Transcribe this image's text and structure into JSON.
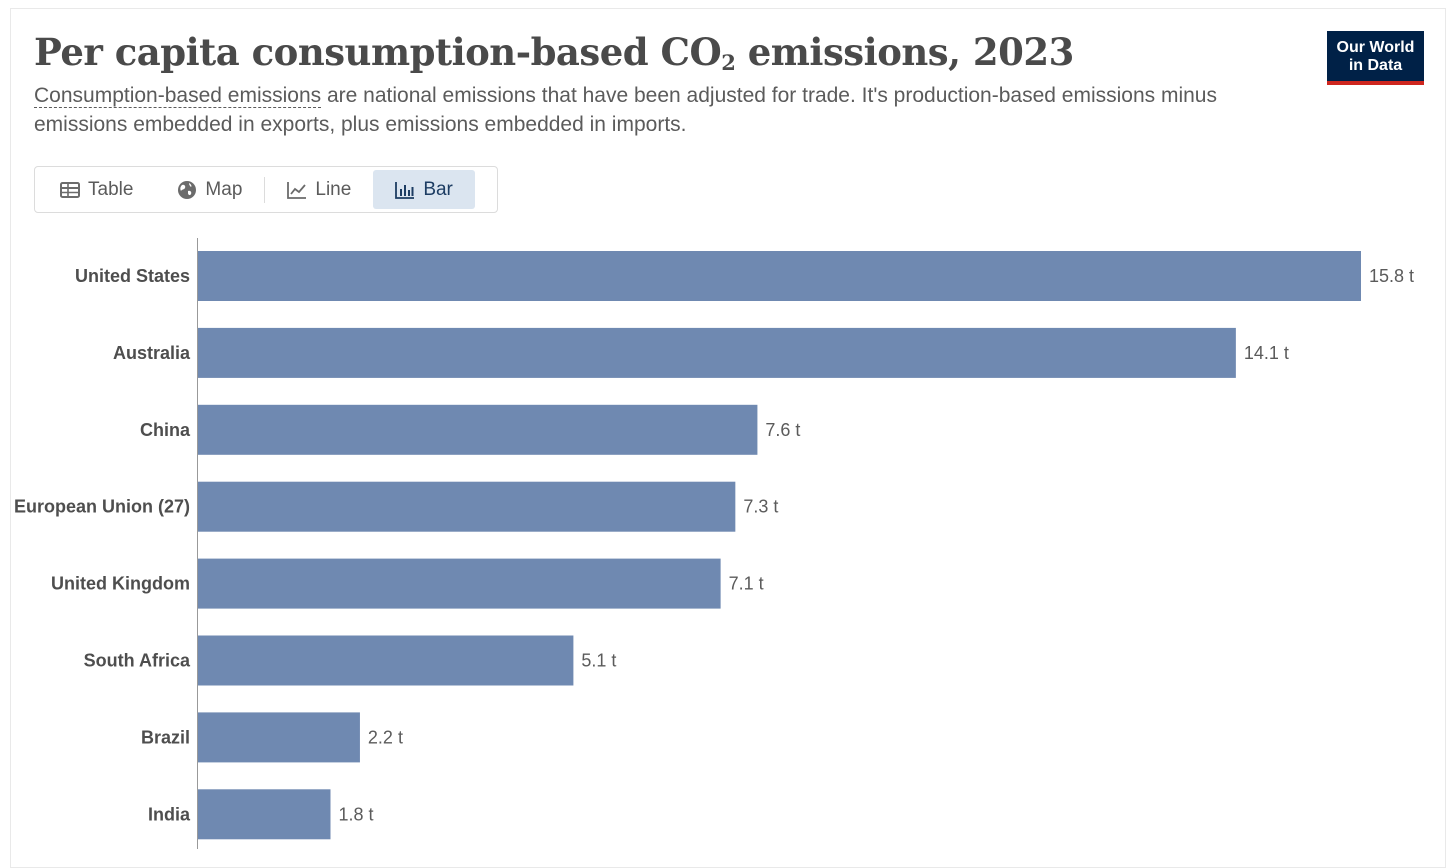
{
  "header": {
    "title_prefix": "Per capita consumption-based CO",
    "title_sub": "2",
    "title_suffix": " emissions, 2023",
    "subtitle_term": "Consumption-based emissions",
    "subtitle_rest": " are national emissions that have been adjusted for trade. It's production-based emissions minus emissions embedded in exports, plus emissions embedded in imports."
  },
  "logo": {
    "line1": "Our World",
    "line2": "in Data"
  },
  "tabs": [
    {
      "label": "Table",
      "icon": "table-icon",
      "active": false
    },
    {
      "label": "Map",
      "icon": "globe-icon",
      "active": false
    },
    {
      "label": "Line",
      "icon": "line-chart-icon",
      "active": false
    },
    {
      "label": "Bar",
      "icon": "bar-chart-icon",
      "active": true
    }
  ],
  "colors": {
    "bar": "#6f89b1",
    "axis": "#999999",
    "active_tab_bg": "#dbe5f0",
    "logo_bg": "#002147",
    "logo_accent": "#ce261e"
  },
  "chart_data": {
    "type": "bar",
    "orientation": "horizontal",
    "title": "Per capita consumption-based CO2 emissions, 2023",
    "unit": "t",
    "categories": [
      "United States",
      "Australia",
      "China",
      "European Union (27)",
      "United Kingdom",
      "South Africa",
      "Brazil",
      "India"
    ],
    "values": [
      15.8,
      14.1,
      7.6,
      7.3,
      7.1,
      5.1,
      2.2,
      1.8
    ],
    "value_labels": [
      "15.8 t",
      "14.1 t",
      "7.6 t",
      "7.3 t",
      "7.1 t",
      "5.1 t",
      "2.2 t",
      "1.8 t"
    ],
    "xlim": [
      0,
      15.8
    ]
  }
}
